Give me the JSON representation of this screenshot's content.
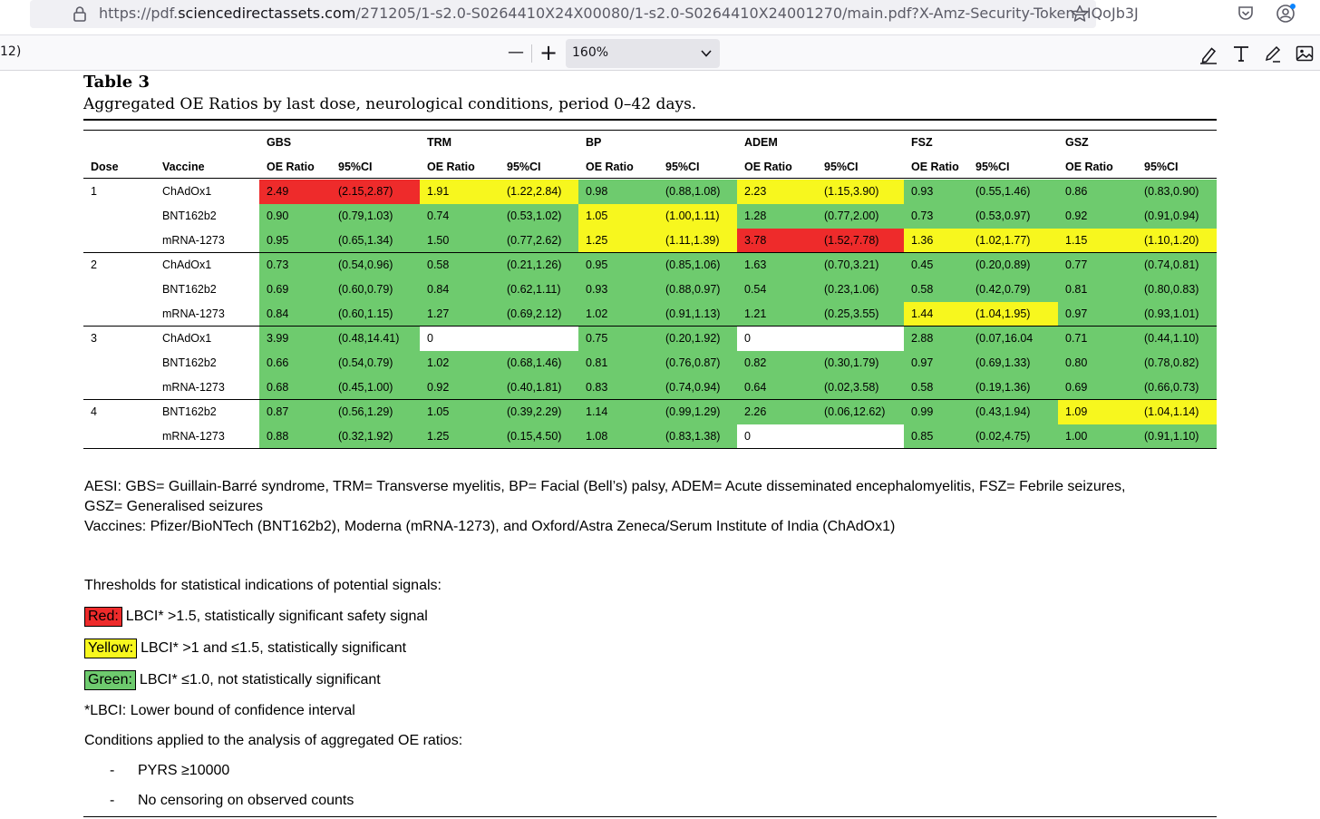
{
  "browser": {
    "url_prefix": "https://pdf.",
    "url_host": "sciencedirectassets.com",
    "url_path": "/271205/1-s2.0-S0264410X24X00080/1-s2.0-S0264410X24001270/main.pdf?X-Amz-Security-Token=IQoJb3J",
    "icons": [
      "shield-icon",
      "lock-icon",
      "star-icon",
      "pocket-icon",
      "account-icon"
    ]
  },
  "pdf_toolbar": {
    "page_indicator": "12)",
    "zoom_value": "160%",
    "zoom_out_label": "—",
    "zoom_in_label": "+",
    "icons": [
      "highlight-icon",
      "text-icon",
      "draw-icon",
      "image-icon"
    ]
  },
  "colors": {
    "green": "#6ecb6e",
    "yellow": "#f7f71e",
    "red": "#ee2b2b"
  },
  "table": {
    "label": "Table 3",
    "caption": "Aggregated OE Ratios by last dose, neurological conditions, period 0–42 days.",
    "conditions": [
      "GBS",
      "TRM",
      "BP",
      "ADEM",
      "FSZ",
      "GSZ"
    ],
    "headers": [
      "Dose",
      "Vaccine",
      "OE Ratio",
      "95%CI",
      "OE Ratio",
      "95%CI",
      "OE Ratio",
      "95%CI",
      "OE Ratio",
      "95%CI",
      "OE Ratio",
      "95%CI",
      "OE Ratio",
      "95%CI"
    ],
    "rows": [
      {
        "dose": "1",
        "vaccine": "ChAdOx1",
        "cells": [
          [
            "2.49",
            "(2.15,2.87)",
            "r"
          ],
          [
            "1.91",
            "(1.22,2.84)",
            "y"
          ],
          [
            "0.98",
            "(0.88,1.08)",
            "g"
          ],
          [
            "2.23",
            "(1.15,3.90)",
            "y"
          ],
          [
            "0.93",
            "(0.55,1.46)",
            "g"
          ],
          [
            "0.86",
            "(0.83,0.90)",
            "g"
          ]
        ]
      },
      {
        "dose": "",
        "vaccine": "BNT162b2",
        "cells": [
          [
            "0.90",
            "(0.79,1.03)",
            "g"
          ],
          [
            "0.74",
            "(0.53,1.02)",
            "g"
          ],
          [
            "1.05",
            "(1.00,1.11)",
            "y"
          ],
          [
            "1.28",
            "(0.77,2.00)",
            "g"
          ],
          [
            "0.73",
            "(0.53,0.97)",
            "g"
          ],
          [
            "0.92",
            "(0.91,0.94)",
            "g"
          ]
        ]
      },
      {
        "dose": "",
        "vaccine": "mRNA-1273",
        "cells": [
          [
            "0.95",
            "(0.65,1.34)",
            "g"
          ],
          [
            "1.50",
            "(0.77,2.62)",
            "g"
          ],
          [
            "1.25",
            "(1.11,1.39)",
            "y"
          ],
          [
            "3.78",
            "(1.52,7.78)",
            "r"
          ],
          [
            "1.36",
            "(1.02,1.77)",
            "y"
          ],
          [
            "1.15",
            "(1.10,1.20)",
            "y"
          ]
        ]
      },
      {
        "dose": "2",
        "vaccine": "ChAdOx1",
        "cells": [
          [
            "0.73",
            "(0.54,0.96)",
            "g"
          ],
          [
            "0.58",
            "(0.21,1.26)",
            "g"
          ],
          [
            "0.95",
            "(0.85,1.06)",
            "g"
          ],
          [
            "1.63",
            "(0.70,3.21)",
            "g"
          ],
          [
            "0.45",
            "(0.20,0.89)",
            "g"
          ],
          [
            "0.77",
            "(0.74,0.81)",
            "g"
          ]
        ]
      },
      {
        "dose": "",
        "vaccine": "BNT162b2",
        "cells": [
          [
            "0.69",
            "(0.60,0.79)",
            "g"
          ],
          [
            "0.84",
            "(0.62,1.11)",
            "g"
          ],
          [
            "0.93",
            "(0.88,0.97)",
            "g"
          ],
          [
            "0.54",
            "(0.23,1.06)",
            "g"
          ],
          [
            "0.58",
            "(0.42,0.79)",
            "g"
          ],
          [
            "0.81",
            "(0.80,0.83)",
            "g"
          ]
        ]
      },
      {
        "dose": "",
        "vaccine": "mRNA-1273",
        "cells": [
          [
            "0.84",
            "(0.60,1.15)",
            "g"
          ],
          [
            "1.27",
            "(0.69,2.12)",
            "g"
          ],
          [
            "1.02",
            "(0.91,1.13)",
            "g"
          ],
          [
            "1.21",
            "(0.25,3.55)",
            "g"
          ],
          [
            "1.44",
            "(1.04,1.95)",
            "y"
          ],
          [
            "0.97",
            "(0.93,1.01)",
            "g"
          ]
        ]
      },
      {
        "dose": "3",
        "vaccine": "ChAdOx1",
        "cells": [
          [
            "3.99",
            "(0.48,14.41)",
            "g"
          ],
          [
            "0",
            "",
            "w"
          ],
          [
            "0.75",
            "(0.20,1.92)",
            "g"
          ],
          [
            "0",
            "",
            "w"
          ],
          [
            "2.88",
            "(0.07,16.04",
            "g"
          ],
          [
            "0.71",
            "(0.44,1.10)",
            "g"
          ]
        ]
      },
      {
        "dose": "",
        "vaccine": "BNT162b2",
        "cells": [
          [
            "0.66",
            "(0.54,0.79)",
            "g"
          ],
          [
            "1.02",
            "(0.68,1.46)",
            "g"
          ],
          [
            "0.81",
            "(0.76,0.87)",
            "g"
          ],
          [
            "0.82",
            "(0.30,1.79)",
            "g"
          ],
          [
            "0.97",
            "(0.69,1.33)",
            "g"
          ],
          [
            "0.80",
            "(0.78,0.82)",
            "g"
          ]
        ]
      },
      {
        "dose": "",
        "vaccine": "mRNA-1273",
        "cells": [
          [
            "0.68",
            "(0.45,1.00)",
            "g"
          ],
          [
            "0.92",
            "(0.40,1.81)",
            "g"
          ],
          [
            "0.83",
            "(0.74,0.94)",
            "g"
          ],
          [
            "0.64",
            "(0.02,3.58)",
            "g"
          ],
          [
            "0.58",
            "(0.19,1.36)",
            "g"
          ],
          [
            "0.69",
            "(0.66,0.73)",
            "g"
          ]
        ]
      },
      {
        "dose": "4",
        "vaccine": "BNT162b2",
        "cells": [
          [
            "0.87",
            "(0.56,1.29)",
            "g"
          ],
          [
            "1.05",
            "(0.39,2.29)",
            "g"
          ],
          [
            "1.14",
            "(0.99,1.29)",
            "g"
          ],
          [
            "2.26",
            "(0.06,12.62)",
            "g"
          ],
          [
            "0.99",
            "(0.43,1.94)",
            "g"
          ],
          [
            "1.09",
            "(1.04,1.14)",
            "y"
          ]
        ]
      },
      {
        "dose": "",
        "vaccine": "mRNA-1273",
        "cells": [
          [
            "0.88",
            "(0.32,1.92)",
            "g"
          ],
          [
            "1.25",
            "(0.15,4.50)",
            "g"
          ],
          [
            "1.08",
            "(0.83,1.38)",
            "g"
          ],
          [
            "0",
            "",
            "w"
          ],
          [
            "0.85",
            "(0.02,4.75)",
            "g"
          ],
          [
            "1.00",
            "(0.91,1.10)",
            "g"
          ]
        ]
      }
    ]
  },
  "notes": {
    "aesi_line1": "AESI: GBS= Guillain-Barré syndrome, TRM= Transverse myelitis, BP= Facial (Bell’s) palsy, ADEM= Acute disseminated encephalomyelitis, FSZ= Febrile seizures,",
    "aesi_line2": "GSZ= Generalised seizures",
    "vaccines": "Vaccines: Pfizer/BioNTech (BNT162b2), Moderna (mRNA-1273), and Oxford/Astra Zeneca/Serum Institute of India (ChAdOx1)",
    "thresholds_title": "Thresholds for statistical indications of potential signals:",
    "red_label": "Red:",
    "red_text": "LBCI* >1.5, statistically significant safety signal",
    "yellow_label": "Yellow:",
    "yellow_text": "LBCI* >1 and ≤1.5, statistically significant",
    "green_label": "Green:",
    "green_text": "LBCI* ≤1.0, not statistically significant",
    "lbci_def": "*LBCI: Lower bound of confidence interval",
    "conditions_title": "Conditions applied to the analysis of aggregated OE ratios:",
    "bullet_marker": "-",
    "cond_1": "PYRS ≥10000",
    "cond_2": "No censoring on observed counts"
  }
}
